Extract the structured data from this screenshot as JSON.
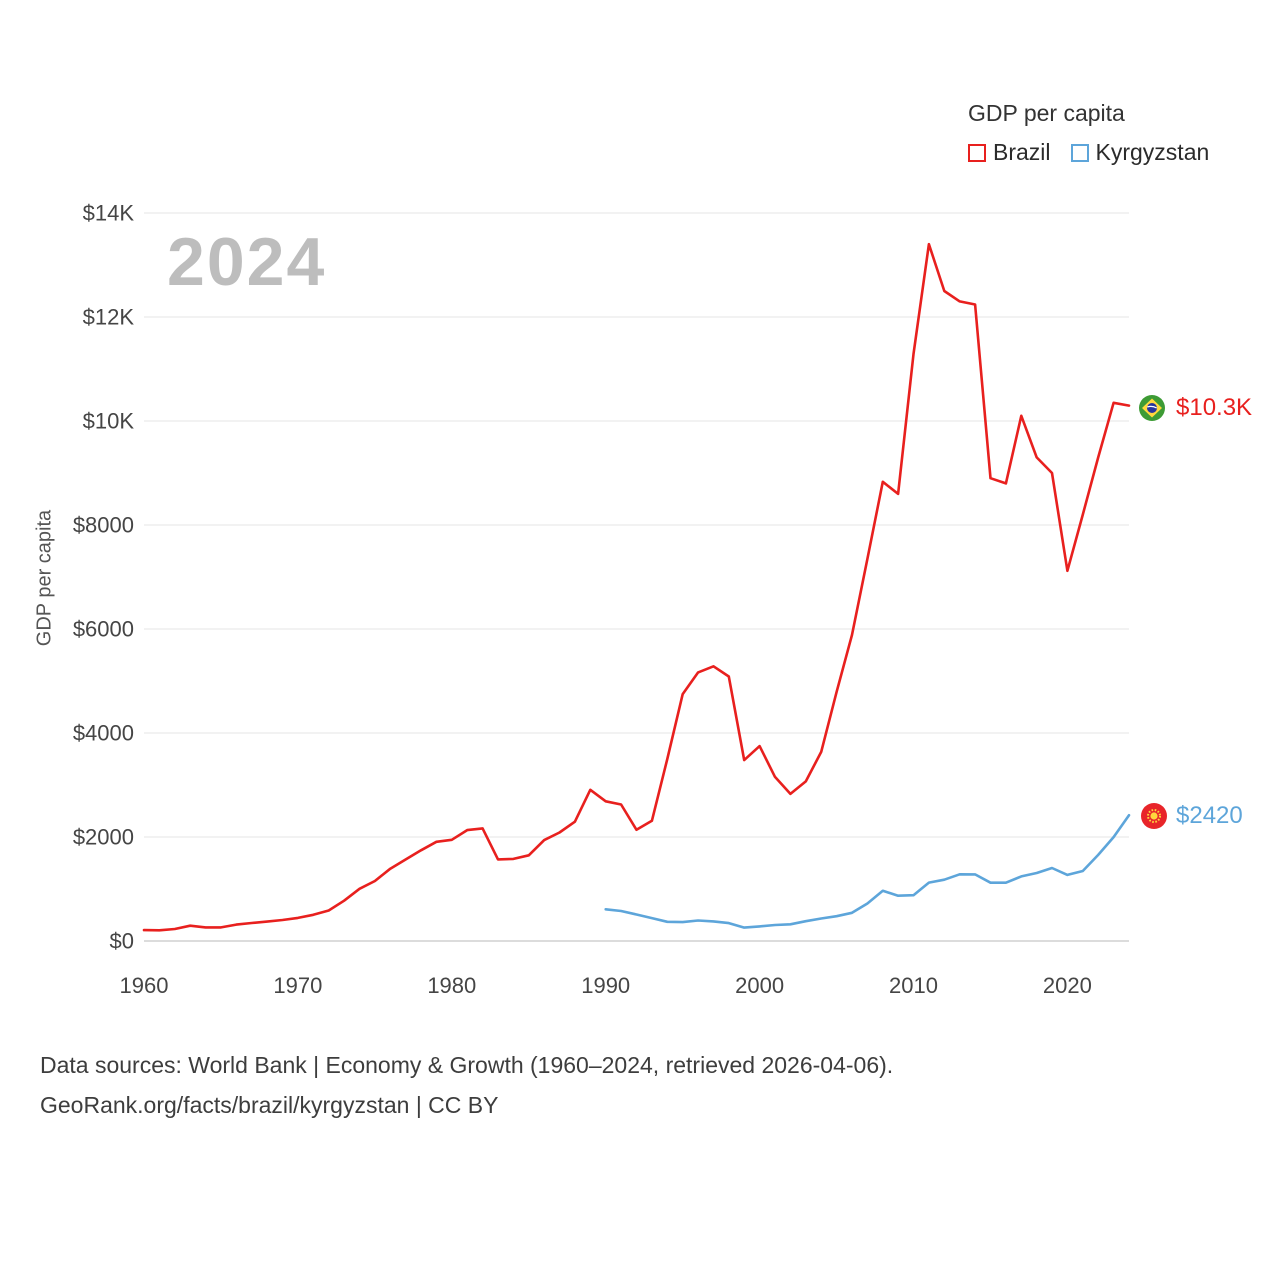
{
  "watermark": "2024",
  "y_axis_title": "GDP per capita",
  "legend": {
    "title": "GDP per capita",
    "items": [
      {
        "label": "Brazil",
        "color": "#e8201e"
      },
      {
        "label": "Kyrgyzstan",
        "color": "#5da5da"
      }
    ]
  },
  "end_labels": {
    "brazil": {
      "value": "$10.3K",
      "color": "#e8201e",
      "flag": "brazil-flag"
    },
    "kyrgyzstan": {
      "value": "$2420",
      "color": "#5da5da",
      "flag": "kyrgyzstan-flag"
    }
  },
  "footer": {
    "line1": "Data sources: World Bank | Economy & Growth (1960–2024, retrieved 2026-04-06).",
    "line2": "GeoRank.org/facts/brazil/kyrgyzstan | CC BY"
  },
  "chart_data": {
    "type": "line",
    "title": "GDP per capita",
    "xlabel": "",
    "ylabel": "GDP per capita",
    "xlim": [
      1960,
      2024
    ],
    "ylim": [
      0,
      14000
    ],
    "grid": "horizontal",
    "legend_position": "top-right",
    "x_ticks": [
      1960,
      1970,
      1980,
      1990,
      2000,
      2010,
      2020
    ],
    "y_ticks": [
      {
        "value": 0,
        "label": "$0"
      },
      {
        "value": 2000,
        "label": "$2000"
      },
      {
        "value": 4000,
        "label": "$4000"
      },
      {
        "value": 6000,
        "label": "$6000"
      },
      {
        "value": 8000,
        "label": "$8000"
      },
      {
        "value": 10000,
        "label": "$10K"
      },
      {
        "value": 12000,
        "label": "$12K"
      },
      {
        "value": 14000,
        "label": "$14K"
      }
    ],
    "series": [
      {
        "name": "Brazil",
        "color": "#e8201e",
        "start_year": 1960,
        "end_value_label": "$10.3K",
        "values": [
          210,
          205,
          230,
          295,
          261,
          261,
          316,
          347,
          374,
          404,
          445,
          504,
          586,
          775,
          1004,
          1154,
          1391,
          1567,
          1744,
          1908,
          1947,
          2133,
          2165,
          1570,
          1578,
          1648,
          1941,
          2087,
          2294,
          2908,
          2686,
          2625,
          2139,
          2312,
          3500,
          4748,
          5166,
          5282,
          5087,
          3478,
          3749,
          3156,
          2829,
          3070,
          3637,
          4790,
          5886,
          7348,
          8831,
          8598,
          11286,
          13400,
          12500,
          12300,
          12240,
          8900,
          8800,
          10100,
          9300,
          9000,
          7119,
          8200,
          9300,
          10350,
          10296
        ]
      },
      {
        "name": "Kyrgyzstan",
        "color": "#5da5da",
        "start_year": 1990,
        "end_value_label": "$2420",
        "values": [
          609,
          576,
          510,
          441,
          370,
          364,
          395,
          376,
          345,
          258,
          280,
          308,
          321,
          380,
          433,
          476,
          543,
          722,
          966,
          871,
          880,
          1124,
          1178,
          1282,
          1280,
          1121,
          1121,
          1243,
          1308,
          1404,
          1271,
          1347,
          1656,
          1999,
          2420
        ]
      }
    ]
  }
}
